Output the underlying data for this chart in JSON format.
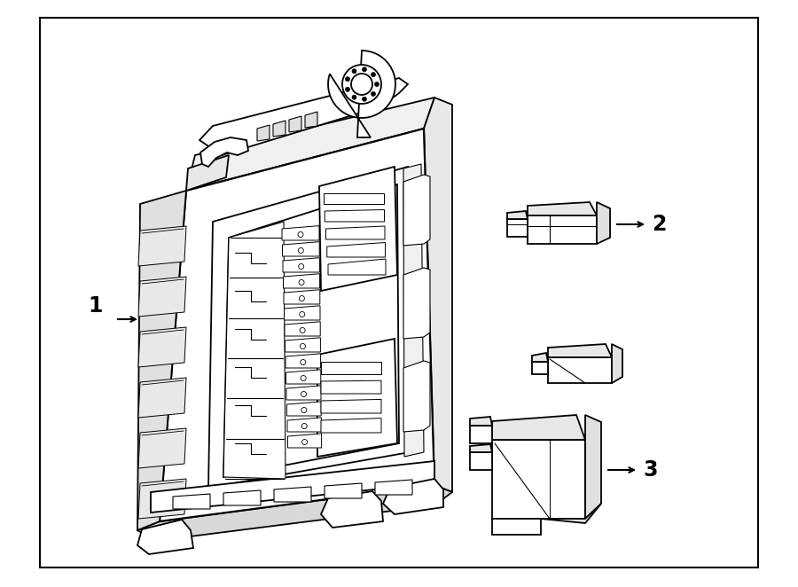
{
  "bg_color": "#ffffff",
  "line_color": "#000000",
  "line_width": 1.3,
  "fig_width": 9.0,
  "fig_height": 6.62,
  "dpi": 100,
  "label_1": "1",
  "label_2": "2",
  "label_3": "3",
  "border_lw": 1.5,
  "bx0": 45,
  "by0": 20,
  "bx1": 855,
  "by1": 640
}
